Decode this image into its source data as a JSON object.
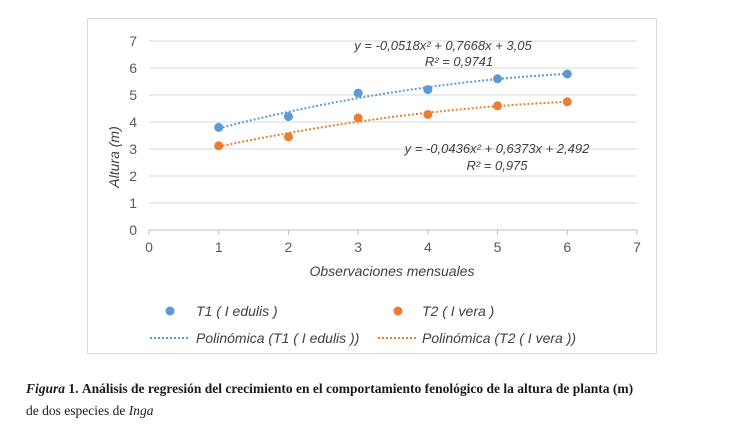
{
  "chart_data": {
    "type": "scatter",
    "xlabel": "Observaciones mensuales",
    "ylabel": "Altura (m)",
    "xlim": [
      0,
      7
    ],
    "ylim": [
      0,
      7
    ],
    "x_ticks": [
      "0",
      "1",
      "2",
      "3",
      "4",
      "5",
      "6",
      "7"
    ],
    "y_ticks": [
      "0",
      "1",
      "2",
      "3",
      "4",
      "5",
      "6",
      "7"
    ],
    "grid": "horizontal",
    "legend_position": "bottom",
    "series": [
      {
        "name": "T1 ( I edulis )",
        "color": "#5b9bd5",
        "x": [
          1,
          2,
          3,
          4,
          5,
          6
        ],
        "y": [
          3.8,
          4.2,
          5.07,
          5.2,
          5.6,
          5.78
        ],
        "trendline": {
          "name": "Polinómica (T1 ( I edulis ))",
          "coefficients": [
            -0.0518,
            0.7668,
            3.05
          ],
          "equation": "y = -0,0518x² + 0,7668x + 3,05",
          "r2": "R² = 0,9741"
        }
      },
      {
        "name": "T2 ( I vera )",
        "color": "#ed7d31",
        "x": [
          1,
          2,
          3,
          4,
          5,
          6
        ],
        "y": [
          3.12,
          3.45,
          4.15,
          4.28,
          4.6,
          4.75
        ],
        "trendline": {
          "name": "Polinómica (T2 ( I vera ))",
          "coefficients": [
            -0.0436,
            0.6373,
            2.492
          ],
          "equation": "y = -0,0436x² + 0,6373x + 2,492",
          "r2": "R² = 0,975"
        }
      }
    ]
  },
  "caption": {
    "label": "Figura",
    "number": "1.",
    "title": "Análisis de regresión del crecimiento en el comportamiento fenológico de la altura de planta (m)",
    "text": "de dos especies de",
    "genus": "Inga"
  }
}
